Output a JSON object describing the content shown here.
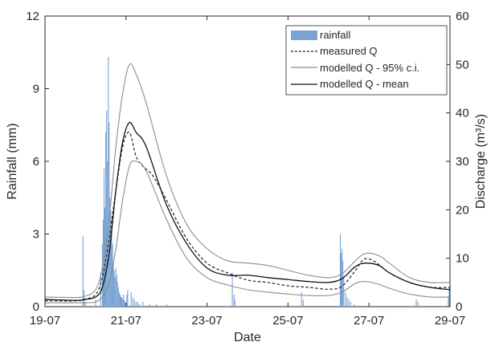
{
  "chart_data": {
    "type": "bar+line",
    "title": "",
    "xlabel": "Date",
    "ylabel_left": "Rainfall (mm)",
    "ylabel_right": "Discharge (m³/s)",
    "ylim_left": [
      0,
      12
    ],
    "ylim_right": [
      0,
      60
    ],
    "xlim_days": [
      "19-07",
      "29-07"
    ],
    "x_ticks": [
      "19-07",
      "21-07",
      "23-07",
      "25-07",
      "27-07",
      "29-07"
    ],
    "y_ticks_left": [
      "0",
      "3",
      "6",
      "9",
      "12"
    ],
    "y_ticks_right": [
      "0",
      "10",
      "20",
      "30",
      "40",
      "50",
      "60"
    ],
    "grid": false,
    "legend_position": "top-right",
    "legend": [
      {
        "label": "rainfall",
        "style": "bar"
      },
      {
        "label": "measured Q",
        "style": "dashed"
      },
      {
        "label": "modelled Q - 95% c.i.",
        "style": "thin-gray"
      },
      {
        "label": "modelled Q - mean",
        "style": "solid-black"
      }
    ],
    "colors": {
      "rainfall": "#7aa3d4",
      "measured": "#222222",
      "ci": "#8c8c8c",
      "mean": "#111111"
    },
    "rainfall": {
      "x": [
        "19-07 22:30",
        "19-07 23:00",
        "20-07 00:00",
        "20-07 06:00",
        "20-07 09:00",
        "20-07 10:00",
        "20-07 10:30",
        "20-07 11:00",
        "20-07 11:30",
        "20-07 12:00",
        "20-07 12:30",
        "20-07 13:00",
        "20-07 13:30",
        "20-07 14:00",
        "20-07 14:30",
        "20-07 15:00",
        "20-07 15:30",
        "20-07 16:00",
        "20-07 16:30",
        "20-07 17:00",
        "20-07 17:30",
        "20-07 18:00",
        "20-07 18:30",
        "20-07 19:00",
        "20-07 19:30",
        "20-07 20:00",
        "20-07 20:30",
        "20-07 21:00",
        "20-07 21:30",
        "20-07 22:00",
        "20-07 22:30",
        "20-07 23:00",
        "20-07 23:30",
        "21-07 00:30",
        "21-07 01:00",
        "21-07 03:00",
        "21-07 04:00",
        "21-07 05:00",
        "21-07 06:00",
        "21-07 07:00",
        "21-07 08:00",
        "21-07 10:00",
        "21-07 14:00",
        "21-07 18:00",
        "22-07 00:00",
        "23-07 15:00",
        "23-07 16:00",
        "23-07 16:30",
        "25-07 08:00",
        "25-07 09:00",
        "26-07 07:00",
        "26-07 07:30",
        "26-07 08:00",
        "26-07 08:30",
        "26-07 09:00",
        "26-07 10:00",
        "26-07 11:00",
        "26-07 12:00",
        "26-07 13:00",
        "26-07 15:00",
        "28-07 04:00",
        "28-07 05:00",
        "28-07 23:00",
        "28-07 23:30"
      ],
      "values": [
        2.9,
        0.7,
        0.2,
        0.3,
        1.4,
        2.6,
        3.6,
        5.7,
        4.1,
        7.2,
        8.1,
        6.0,
        10.3,
        7.6,
        4.5,
        4.0,
        3.1,
        2.6,
        1.8,
        1.5,
        1.2,
        1.6,
        1.3,
        1.0,
        0.8,
        0.6,
        0.5,
        0.4,
        0.4,
        0.3,
        0.5,
        0.3,
        0.2,
        0.5,
        0.7,
        0.6,
        0.4,
        0.3,
        0.2,
        0.2,
        0.1,
        0.2,
        0.1,
        0.1,
        0.1,
        1.4,
        0.5,
        0.3,
        0.6,
        0.3,
        3.0,
        2.2,
        2.4,
        1.9,
        1.2,
        0.6,
        0.4,
        0.3,
        0.2,
        0.1,
        0.3,
        0.2,
        0.4,
        0.8
      ]
    },
    "series": [
      {
        "name": "measured Q",
        "x": [
          "19-07 00:00",
          "19-07 18:00",
          "19-07 23:00",
          "20-07 06:00",
          "20-07 10:00",
          "20-07 14:00",
          "20-07 18:00",
          "20-07 22:00",
          "21-07 02:00",
          "21-07 06:00",
          "21-07 10:00",
          "21-07 16:00",
          "22-07 00:00",
          "22-07 12:00",
          "23-07 00:00",
          "23-07 12:00",
          "24-07 00:00",
          "24-07 12:00",
          "25-07 00:00",
          "25-07 12:00",
          "26-07 00:00",
          "26-07 08:00",
          "26-07 16:00",
          "26-07 21:00",
          "27-07 03:00",
          "27-07 12:00",
          "28-07 00:00",
          "28-07 12:00",
          "29-07 00:00"
        ],
        "values": [
          1.2,
          1.2,
          1.5,
          2.5,
          6,
          14,
          24,
          33,
          36,
          31,
          29,
          27,
          22,
          14,
          9,
          7,
          5.5,
          5,
          4.3,
          4,
          3.6,
          4.2,
          7.5,
          9.8,
          9.4,
          7,
          5,
          4,
          4
        ]
      },
      {
        "name": "modelled Q - 95% c.i.",
        "x": [
          "19-07 00:00",
          "19-07 18:00",
          "20-07 00:00",
          "20-07 06:00",
          "20-07 10:00",
          "20-07 14:00",
          "20-07 18:00",
          "20-07 22:00",
          "21-07 02:00",
          "21-07 06:00",
          "21-07 12:00",
          "22-07 00:00",
          "22-07 12:00",
          "23-07 00:00",
          "23-07 12:00",
          "24-07 00:00",
          "24-07 12:00",
          "25-07 00:00",
          "25-07 12:00",
          "26-07 00:00",
          "26-07 08:00",
          "26-07 16:00",
          "26-07 22:00",
          "27-07 06:00",
          "27-07 12:00",
          "28-07 00:00",
          "28-07 12:00",
          "29-07 00:00"
        ],
        "values": [
          2,
          1.9,
          2.2,
          3.5,
          8,
          18,
          33,
          44,
          50,
          48,
          42,
          27,
          17,
          12,
          9.5,
          9,
          8.5,
          7.5,
          6.5,
          6,
          6.8,
          9.5,
          11,
          10.5,
          9,
          6,
          5,
          5
        ]
      },
      {
        "name": "modelled Q - 95% c.i.",
        "x": [
          "19-07 00:00",
          "19-07 18:00",
          "20-07 00:00",
          "20-07 06:00",
          "20-07 10:00",
          "20-07 14:00",
          "20-07 18:00",
          "20-07 22:00",
          "21-07 02:00",
          "21-07 06:00",
          "21-07 12:00",
          "22-07 00:00",
          "22-07 12:00",
          "23-07 00:00",
          "23-07 12:00",
          "24-07 00:00",
          "24-07 12:00",
          "25-07 00:00",
          "25-07 12:00",
          "26-07 00:00",
          "26-07 08:00",
          "26-07 16:00",
          "26-07 22:00",
          "27-07 06:00",
          "27-07 12:00",
          "28-07 00:00",
          "28-07 12:00",
          "29-07 00:00"
        ],
        "values": [
          0.8,
          0.8,
          0.8,
          1,
          2,
          5,
          12,
          22,
          29,
          30,
          28,
          18,
          10,
          6,
          4.5,
          3.5,
          3,
          2.6,
          2.3,
          2.3,
          3,
          4.8,
          5.2,
          4.6,
          3.8,
          2.6,
          2,
          2
        ]
      },
      {
        "name": "modelled Q - mean",
        "x": [
          "19-07 00:00",
          "19-07 18:00",
          "20-07 00:00",
          "20-07 06:00",
          "20-07 10:00",
          "20-07 14:00",
          "20-07 18:00",
          "20-07 22:00",
          "21-07 02:00",
          "21-07 06:00",
          "21-07 12:00",
          "22-07 00:00",
          "22-07 12:00",
          "23-07 00:00",
          "23-07 12:00",
          "24-07 00:00",
          "24-07 12:00",
          "25-07 00:00",
          "25-07 12:00",
          "26-07 00:00",
          "26-07 08:00",
          "26-07 16:00",
          "26-07 22:00",
          "27-07 06:00",
          "27-07 12:00",
          "28-07 00:00",
          "28-07 12:00",
          "29-07 00:00"
        ],
        "values": [
          1.5,
          1.3,
          1.5,
          2,
          4,
          11,
          24,
          34,
          38,
          36,
          33,
          21,
          13,
          8,
          6.5,
          6.5,
          6,
          5.6,
          5.2,
          5,
          5.8,
          8.3,
          9,
          8.5,
          7,
          5,
          4,
          3.5
        ]
      }
    ]
  }
}
